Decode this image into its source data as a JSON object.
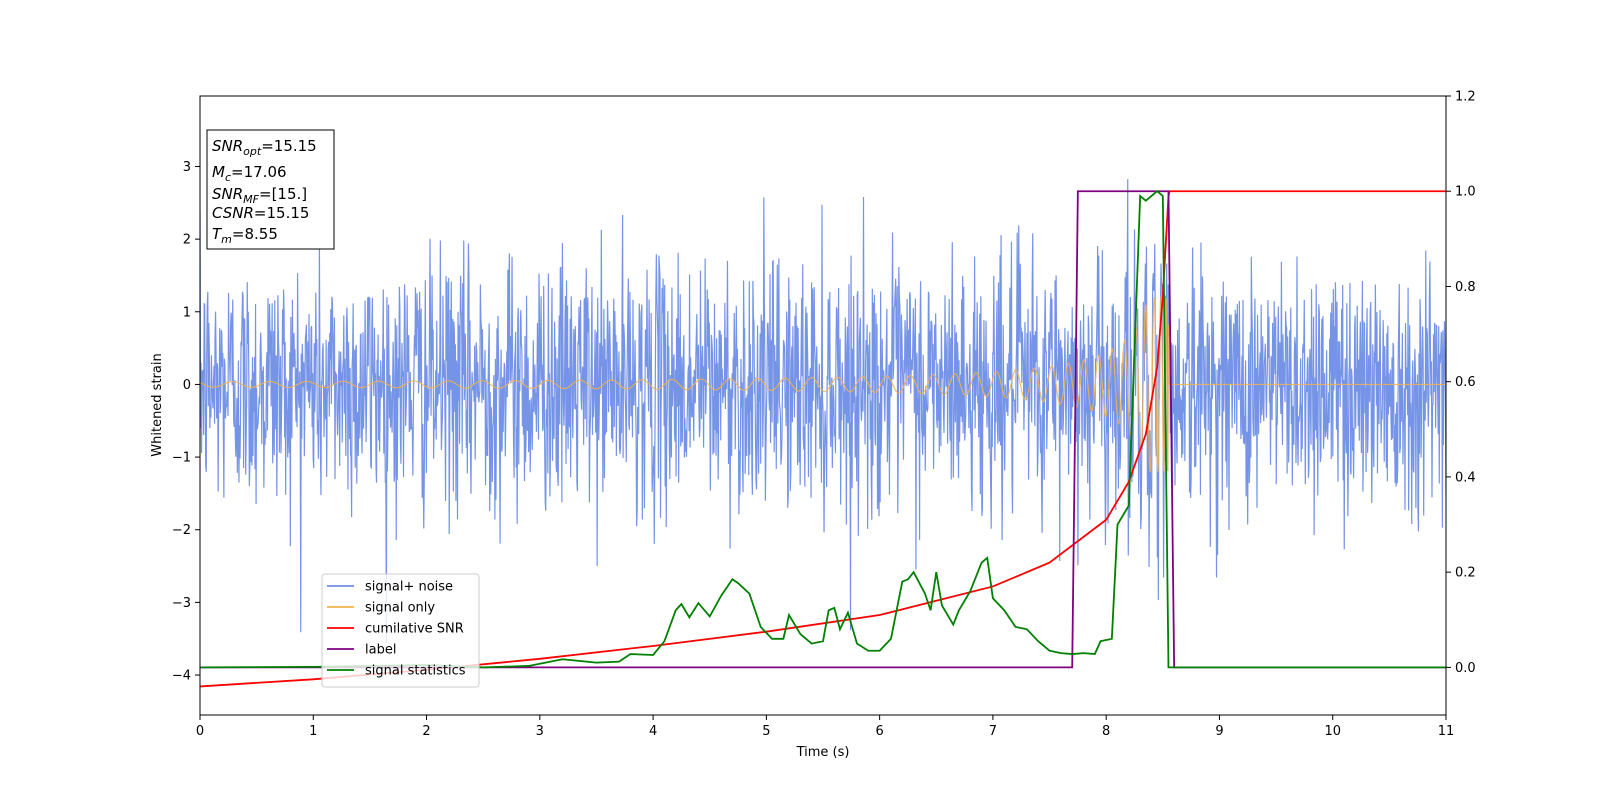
{
  "chart_data": {
    "type": "line",
    "title": "",
    "xlabel": "Time (s)",
    "ylabel": "Whitened strain",
    "xlim": [
      0,
      11
    ],
    "ylim_left": [
      -4.55,
      3.97
    ],
    "ylim_right": [
      -0.1,
      1.2
    ],
    "x_ticks": [
      0,
      1,
      2,
      3,
      4,
      5,
      6,
      7,
      8,
      9,
      10,
      11
    ],
    "y_ticks_left": [
      -4,
      -3,
      -2,
      -1,
      0,
      1,
      2,
      3
    ],
    "y_ticks_right": [
      0.0,
      0.2,
      0.4,
      0.6,
      0.8,
      1.0,
      1.2
    ],
    "grid": false,
    "legend_position": "lower-left",
    "annotation_box": {
      "lines": [
        {
          "name": "SNR",
          "sub": "opt",
          "value": "=15.15"
        },
        {
          "name": "M",
          "sub": "c",
          "value": "=17.06"
        },
        {
          "name": "SNR",
          "sub": "MF",
          "value": "=[15.]"
        },
        {
          "name": "CSNR",
          "sub": "",
          "value": "=15.15"
        },
        {
          "name": "T",
          "sub": "m",
          "value": "=8.55"
        }
      ]
    },
    "series": [
      {
        "name": "signal+ noise",
        "axis": "left",
        "color": "#6f8ee6",
        "kind": "noise",
        "std": 0.85,
        "samples": 2400,
        "notes": "Gaussian noise plus chirp, spans x 0 to 11"
      },
      {
        "name": "signal only",
        "axis": "left",
        "color": "#f2b24f",
        "kind": "chirp",
        "t_merge": 8.55,
        "amp_start": 0.03,
        "amp_peak": 1.2
      },
      {
        "name": "cumilative SNR",
        "axis": "right",
        "color": "#ff0000",
        "x": [
          0,
          1,
          2,
          3,
          4,
          5,
          6,
          7,
          7.5,
          8,
          8.2,
          8.35,
          8.45,
          8.5,
          8.55,
          8.56,
          11
        ],
        "y": [
          -0.04,
          -0.025,
          -0.005,
          0.018,
          0.045,
          0.075,
          0.11,
          0.17,
          0.22,
          0.31,
          0.39,
          0.49,
          0.63,
          0.78,
          0.99,
          1.0,
          1.0
        ]
      },
      {
        "name": "label",
        "axis": "right",
        "color": "#800080",
        "x": [
          0,
          7.7,
          7.75,
          8.55,
          8.6,
          11
        ],
        "y": [
          0,
          0,
          1,
          1,
          0,
          0
        ]
      },
      {
        "name": "signal statistics",
        "axis": "right",
        "color": "#008000",
        "x": [
          0,
          1,
          2,
          2.5,
          2.9,
          3.2,
          3.5,
          3.7,
          3.8,
          4.0,
          4.1,
          4.2,
          4.25,
          4.32,
          4.4,
          4.5,
          4.6,
          4.7,
          4.75,
          4.85,
          4.95,
          5.05,
          5.15,
          5.2,
          5.3,
          5.4,
          5.5,
          5.55,
          5.6,
          5.65,
          5.72,
          5.8,
          5.9,
          6.0,
          6.1,
          6.2,
          6.25,
          6.3,
          6.4,
          6.45,
          6.5,
          6.55,
          6.65,
          6.7,
          6.8,
          6.9,
          6.95,
          7.0,
          7.1,
          7.2,
          7.3,
          7.4,
          7.5,
          7.6,
          7.7,
          7.8,
          7.9,
          7.95,
          8.05,
          8.1,
          8.2,
          8.3,
          8.35,
          8.4,
          8.45,
          8.5,
          8.55,
          8.6,
          11
        ],
        "y": [
          0.0,
          0.001,
          0.005,
          0.0,
          0.003,
          0.017,
          0.01,
          0.012,
          0.028,
          0.026,
          0.055,
          0.12,
          0.133,
          0.105,
          0.135,
          0.107,
          0.15,
          0.185,
          0.177,
          0.155,
          0.085,
          0.06,
          0.06,
          0.11,
          0.07,
          0.05,
          0.055,
          0.12,
          0.125,
          0.08,
          0.115,
          0.05,
          0.035,
          0.035,
          0.06,
          0.18,
          0.185,
          0.2,
          0.155,
          0.12,
          0.2,
          0.13,
          0.09,
          0.12,
          0.16,
          0.22,
          0.23,
          0.145,
          0.12,
          0.085,
          0.08,
          0.055,
          0.035,
          0.03,
          0.028,
          0.03,
          0.028,
          0.055,
          0.06,
          0.3,
          0.34,
          0.99,
          0.98,
          0.99,
          1.0,
          0.99,
          0.0,
          0.0,
          0.0
        ]
      }
    ]
  }
}
